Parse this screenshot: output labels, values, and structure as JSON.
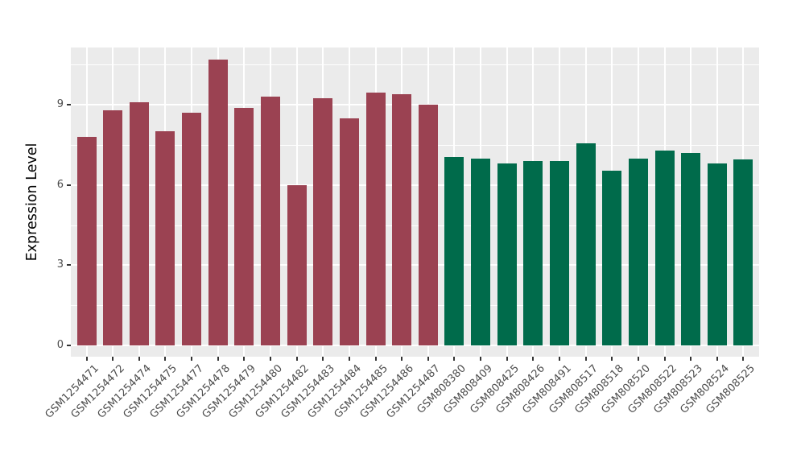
{
  "chart_data": {
    "type": "bar",
    "title": "",
    "xlabel": "",
    "ylabel": "Expression Level",
    "categories": [
      "GSM1254471",
      "GSM1254472",
      "GSM1254474",
      "GSM1254475",
      "GSM1254477",
      "GSM1254478",
      "GSM1254479",
      "GSM1254480",
      "GSM1254482",
      "GSM1254483",
      "GSM1254484",
      "GSM1254485",
      "GSM1254486",
      "GSM1254487",
      "GSM808380",
      "GSM808409",
      "GSM808425",
      "GSM808426",
      "GSM808491",
      "GSM808517",
      "GSM808518",
      "GSM808520",
      "GSM808522",
      "GSM808523",
      "GSM808524",
      "GSM808525"
    ],
    "values": [
      7.8,
      8.8,
      9.1,
      8.0,
      8.7,
      10.7,
      8.9,
      9.3,
      6.0,
      9.25,
      8.5,
      9.45,
      9.4,
      9.0,
      7.05,
      7.0,
      6.8,
      6.9,
      6.9,
      7.55,
      6.55,
      7.0,
      7.3,
      7.2,
      6.8,
      6.95
    ],
    "bar_group_index": [
      0,
      0,
      0,
      0,
      0,
      0,
      0,
      0,
      0,
      0,
      0,
      0,
      0,
      0,
      1,
      1,
      1,
      1,
      1,
      1,
      1,
      1,
      1,
      1,
      1,
      1
    ],
    "group_colors": [
      "#9B4252",
      "#006B4B"
    ],
    "yticks": [
      0,
      3,
      6,
      9
    ],
    "grid_major": [
      0,
      3,
      6,
      9
    ],
    "grid_minor": [
      1.5,
      4.5,
      7.5,
      10.5
    ],
    "ylim": [
      -0.5,
      11.15
    ],
    "legend": "none",
    "panel_background": "#EBEBEB",
    "grid_color": "#FFFFFF",
    "tick_label_color": "#4D4D4D",
    "tick_mark_color": "#333333",
    "axis_title_color": "#000000",
    "x_label_angle_deg": 45
  }
}
